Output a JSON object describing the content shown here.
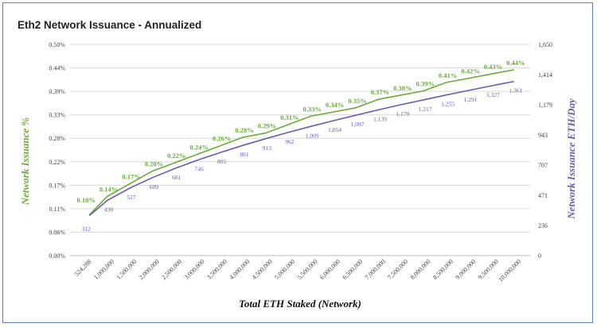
{
  "chart_data": {
    "type": "line",
    "title": "Eth2 Network Issuance - Annualized",
    "xlabel": "Total ETH Staked (Network)",
    "ylabel_left": "Network Issuance %",
    "ylabel_right": "Network Issuance ETH/Day",
    "x_tick_labels": [
      "524,288",
      "1,000,000",
      "1,500,000",
      "2,000,000",
      "2,500,000",
      "3,000,000",
      "3,500,000",
      "4,000,000",
      "4,500,000",
      "5,000,000",
      "5,500,000",
      "6,000,000",
      "6,500,000",
      "7,000,000",
      "7,500,000",
      "8,000,000",
      "8,500,000",
      "9,000,000",
      "9,500,000",
      "10,000,000"
    ],
    "x": [
      524288,
      1000000,
      1500000,
      2000000,
      2500000,
      3000000,
      3500000,
      4000000,
      4500000,
      5000000,
      5500000,
      6000000,
      6500000,
      7000000,
      7500000,
      8000000,
      8500000,
      9000000,
      9500000,
      10000000
    ],
    "y_left_ticks": [
      "0.00%",
      "0.06%",
      "0.11%",
      "0.17%",
      "0.22%",
      "0.28%",
      "0.33%",
      "0.39%",
      "0.44%",
      "0.50%"
    ],
    "y_right_ticks": [
      "0",
      "236",
      "471",
      "707",
      "943",
      "1,179",
      "1,414",
      "1,650"
    ],
    "ylim_right": [
      0,
      1650
    ],
    "grid": true,
    "colors": {
      "issuance_pct": "#6aaa3a",
      "issuance_eth": "#6b5bb5",
      "frame": "#5b7fbf"
    },
    "series": [
      {
        "axis": "left",
        "values": [
          0.096,
          0.14,
          0.17,
          0.2,
          0.22,
          0.24,
          0.26,
          0.28,
          0.29,
          0.31,
          0.33,
          0.34,
          0.35,
          0.37,
          0.38,
          0.39,
          0.41,
          0.42,
          0.43,
          0.44
        ],
        "labels": [
          "0.10%",
          "0.14%",
          "0.17%",
          "0.20%",
          "0.22%",
          "0.24%",
          "0.26%",
          "0.28%",
          "0.29%",
          "0.31%",
          "0.33%",
          "0.34%",
          "0.35%",
          "0.37%",
          "0.38%",
          "0.39%",
          "0.41%",
          "0.42%",
          "0.43%",
          "0.44%"
        ]
      },
      {
        "axis": "right",
        "values": [
          312,
          430,
          527,
          609,
          681,
          746,
          805,
          861,
          913,
          962,
          1009,
          1054,
          1097,
          1139,
          1179,
          1217,
          1255,
          1291,
          1327,
          1361
        ],
        "labels": [
          "312",
          "430",
          "527",
          "609",
          "681",
          "746",
          "805",
          "861",
          "913",
          "962",
          "1,009",
          "1,054",
          "1,097",
          "1,139",
          "1,179",
          "1,217",
          "1,255",
          "1,291",
          "1,327",
          "1,361"
        ]
      }
    ]
  }
}
